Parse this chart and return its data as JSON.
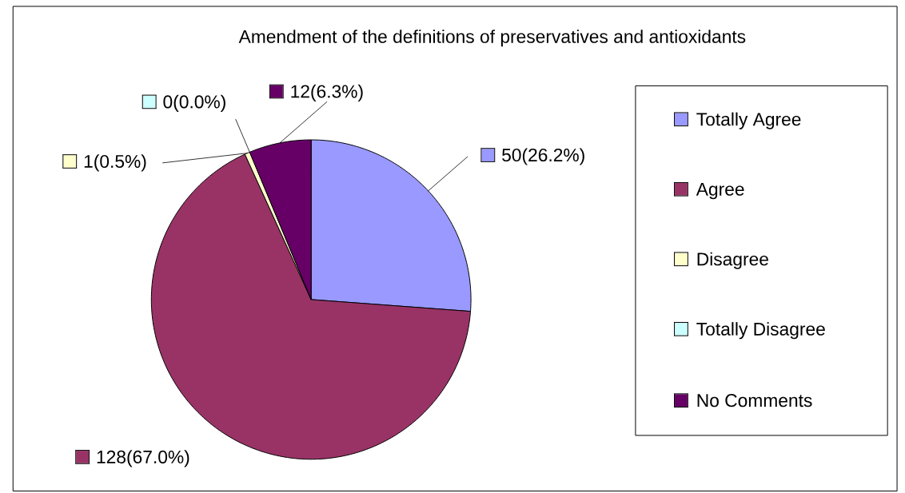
{
  "chart_data": {
    "type": "pie",
    "title": "Amendment of the definitions of preservatives and antioxidants",
    "categories": [
      "Totally Agree",
      "Agree",
      "Disagree",
      "Totally Disagree",
      "No Comments"
    ],
    "values": [
      50,
      128,
      1,
      0,
      12
    ],
    "colors": [
      "#9999ff",
      "#993366",
      "#ffffcc",
      "#ccffff",
      "#660066"
    ],
    "value_labels": [
      "50(26.2%)",
      "128(67.0%)",
      "1(0.5%)",
      "0(0.0%)",
      "12(6.3%)"
    ],
    "legend": "right"
  }
}
